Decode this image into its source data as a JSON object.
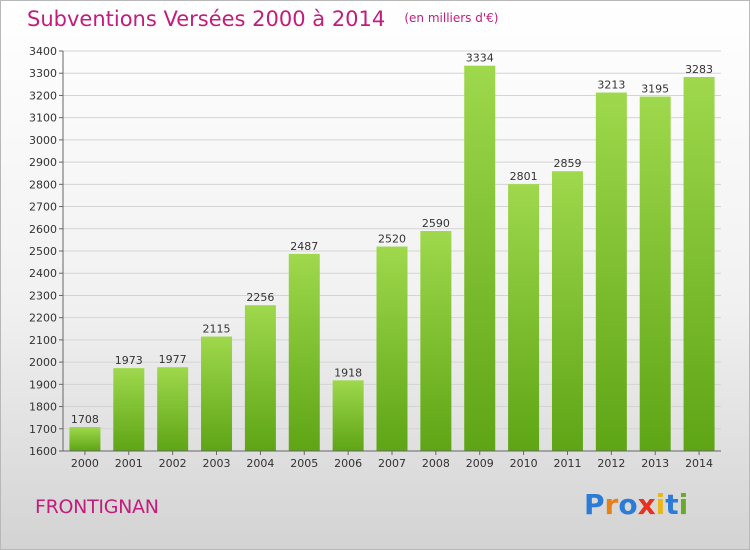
{
  "header": {
    "title": "Subventions Versées 2000 à 2014",
    "subtitle": "(en milliers d'€)"
  },
  "footer": {
    "commune": "FRONTIGNAN",
    "brand": "Proxiti",
    "brand_colors": [
      "#2c7bd6",
      "#e8801a",
      "#2c7bd6",
      "#e8301c",
      "#e8b71a",
      "#2c7bd6",
      "#6aaa2a"
    ]
  },
  "colors": {
    "bar_light": "#9fd84c",
    "bar_dark": "#5ea516",
    "accent": "#c21d7d",
    "grid": "#d4d4d4"
  },
  "chart_data": {
    "type": "bar",
    "title": "Subventions Versées 2000 à 2014",
    "subtitle": "(en milliers d'€)",
    "xlabel": "",
    "ylabel": "",
    "categories": [
      "2000",
      "2001",
      "2002",
      "2003",
      "2004",
      "2005",
      "2006",
      "2007",
      "2008",
      "2009",
      "2010",
      "2011",
      "2012",
      "2013",
      "2014"
    ],
    "values": [
      1708,
      1973,
      1977,
      2115,
      2256,
      2487,
      1918,
      2520,
      2590,
      3334,
      2801,
      2859,
      3213,
      3195,
      3283
    ],
    "ylim": [
      1600,
      3400
    ],
    "yticks": [
      1600,
      1700,
      1800,
      1900,
      2000,
      2100,
      2200,
      2300,
      2400,
      2500,
      2600,
      2700,
      2800,
      2900,
      3000,
      3100,
      3200,
      3300,
      3400
    ],
    "grid": true,
    "data_labels": true
  }
}
